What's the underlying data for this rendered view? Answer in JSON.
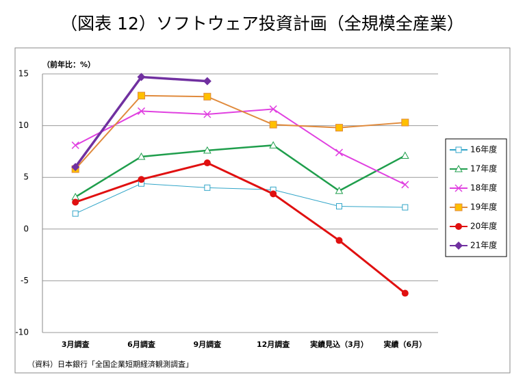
{
  "chart_data": {
    "type": "line",
    "title": "（図表 12）ソフトウェア投資計画（全規模全産業）",
    "ylabel": "（前年比：%）",
    "source": "（資料）日本銀行「全国企業短期経済観測調査」",
    "categories": [
      "3月調査",
      "6月調査",
      "9月調査",
      "12月調査",
      "実績見込（3月）",
      "実績（6月）"
    ],
    "series": [
      {
        "name": "16年度",
        "color": "#31a5c8",
        "marker": "square-open",
        "values": [
          1.5,
          4.4,
          4.0,
          3.8,
          2.2,
          2.1
        ]
      },
      {
        "name": "17年度",
        "color": "#1f9e4c",
        "marker": "triangle-open",
        "values": [
          3.1,
          7.0,
          7.6,
          8.1,
          3.7,
          7.1
        ]
      },
      {
        "name": "18年度",
        "color": "#e040e0",
        "marker": "x",
        "values": [
          8.1,
          11.4,
          11.1,
          11.6,
          7.4,
          4.3
        ]
      },
      {
        "name": "19年度",
        "color": "#e08a3c",
        "marker": "square",
        "marker_fill": "#ffc000",
        "values": [
          5.8,
          12.9,
          12.8,
          10.1,
          9.8,
          10.3
        ]
      },
      {
        "name": "20年度",
        "color": "#e01010",
        "marker": "circle",
        "values": [
          2.6,
          4.8,
          6.4,
          3.4,
          -1.1,
          -6.2
        ]
      },
      {
        "name": "21年度",
        "color": "#7030a0",
        "marker": "diamond",
        "values": [
          6.0,
          14.7,
          14.3,
          null,
          null,
          null
        ]
      }
    ],
    "ylim": [
      -10,
      15
    ],
    "yticks": [
      -10,
      -5,
      0,
      5,
      10,
      15
    ],
    "negative_tick_color": "#e00000",
    "grid": true,
    "legend": "right"
  }
}
